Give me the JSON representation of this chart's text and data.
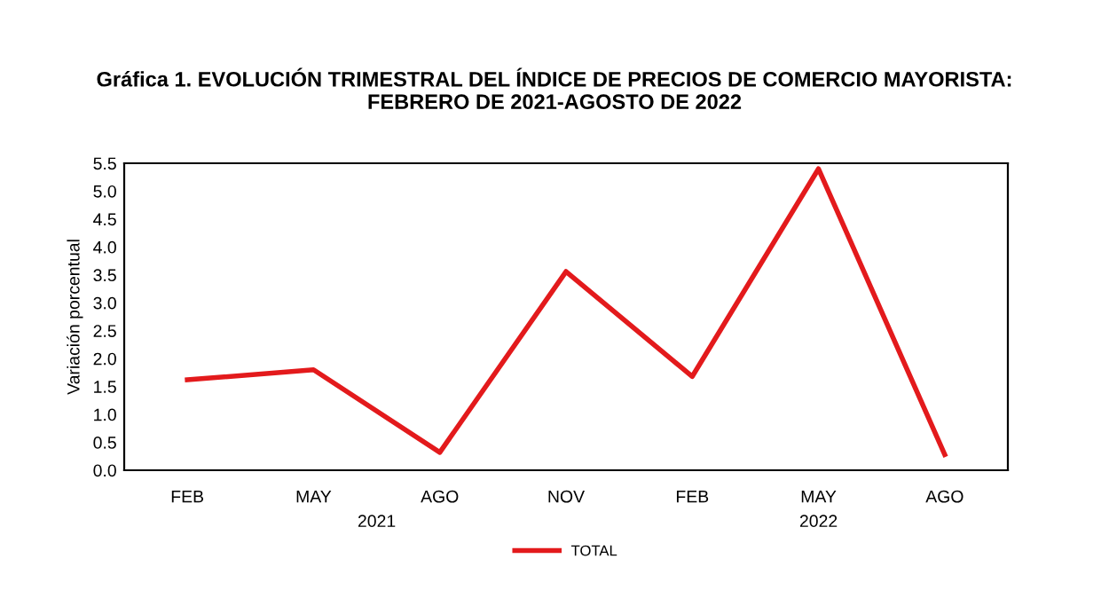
{
  "chart_data": {
    "type": "line",
    "title": "Gráfica 1. EVOLUCIÓN TRIMESTRAL DEL ÍNDICE DE PRECIOS DE COMERCIO MAYORISTA:\nFEBRERO DE 2021-AGOSTO DE 2022",
    "ylabel": "Variación porcentual",
    "categories": [
      "FEB",
      "MAY",
      "AGO",
      "NOV",
      "FEB",
      "MAY",
      "AGO"
    ],
    "series": [
      {
        "name": "TOTAL",
        "color": "#e31a1c",
        "values": [
          1.62,
          1.8,
          0.32,
          3.56,
          1.68,
          5.4,
          0.28
        ]
      }
    ],
    "annotations": [
      "2021",
      "2022"
    ],
    "ylim": [
      0,
      5.5
    ],
    "yticks": [
      {
        "value": 0,
        "label": "0.0"
      },
      {
        "value": 0.5,
        "label": "0.5"
      },
      {
        "value": 1,
        "label": "1.0"
      },
      {
        "value": 1.5,
        "label": "1.5"
      },
      {
        "value": 2,
        "label": "2.0"
      },
      {
        "value": 2.5,
        "label": "2.5"
      },
      {
        "value": 3,
        "label": "3.0"
      },
      {
        "value": 3.5,
        "label": "3.5"
      },
      {
        "value": 4,
        "label": "4.0"
      },
      {
        "value": 4.5,
        "label": "4.5"
      },
      {
        "value": 5,
        "label": "5.0"
      },
      {
        "value": 5.5,
        "label": "5.5"
      }
    ],
    "grid": false,
    "legend": "bottom",
    "marker": "none",
    "line_style": "solid"
  }
}
